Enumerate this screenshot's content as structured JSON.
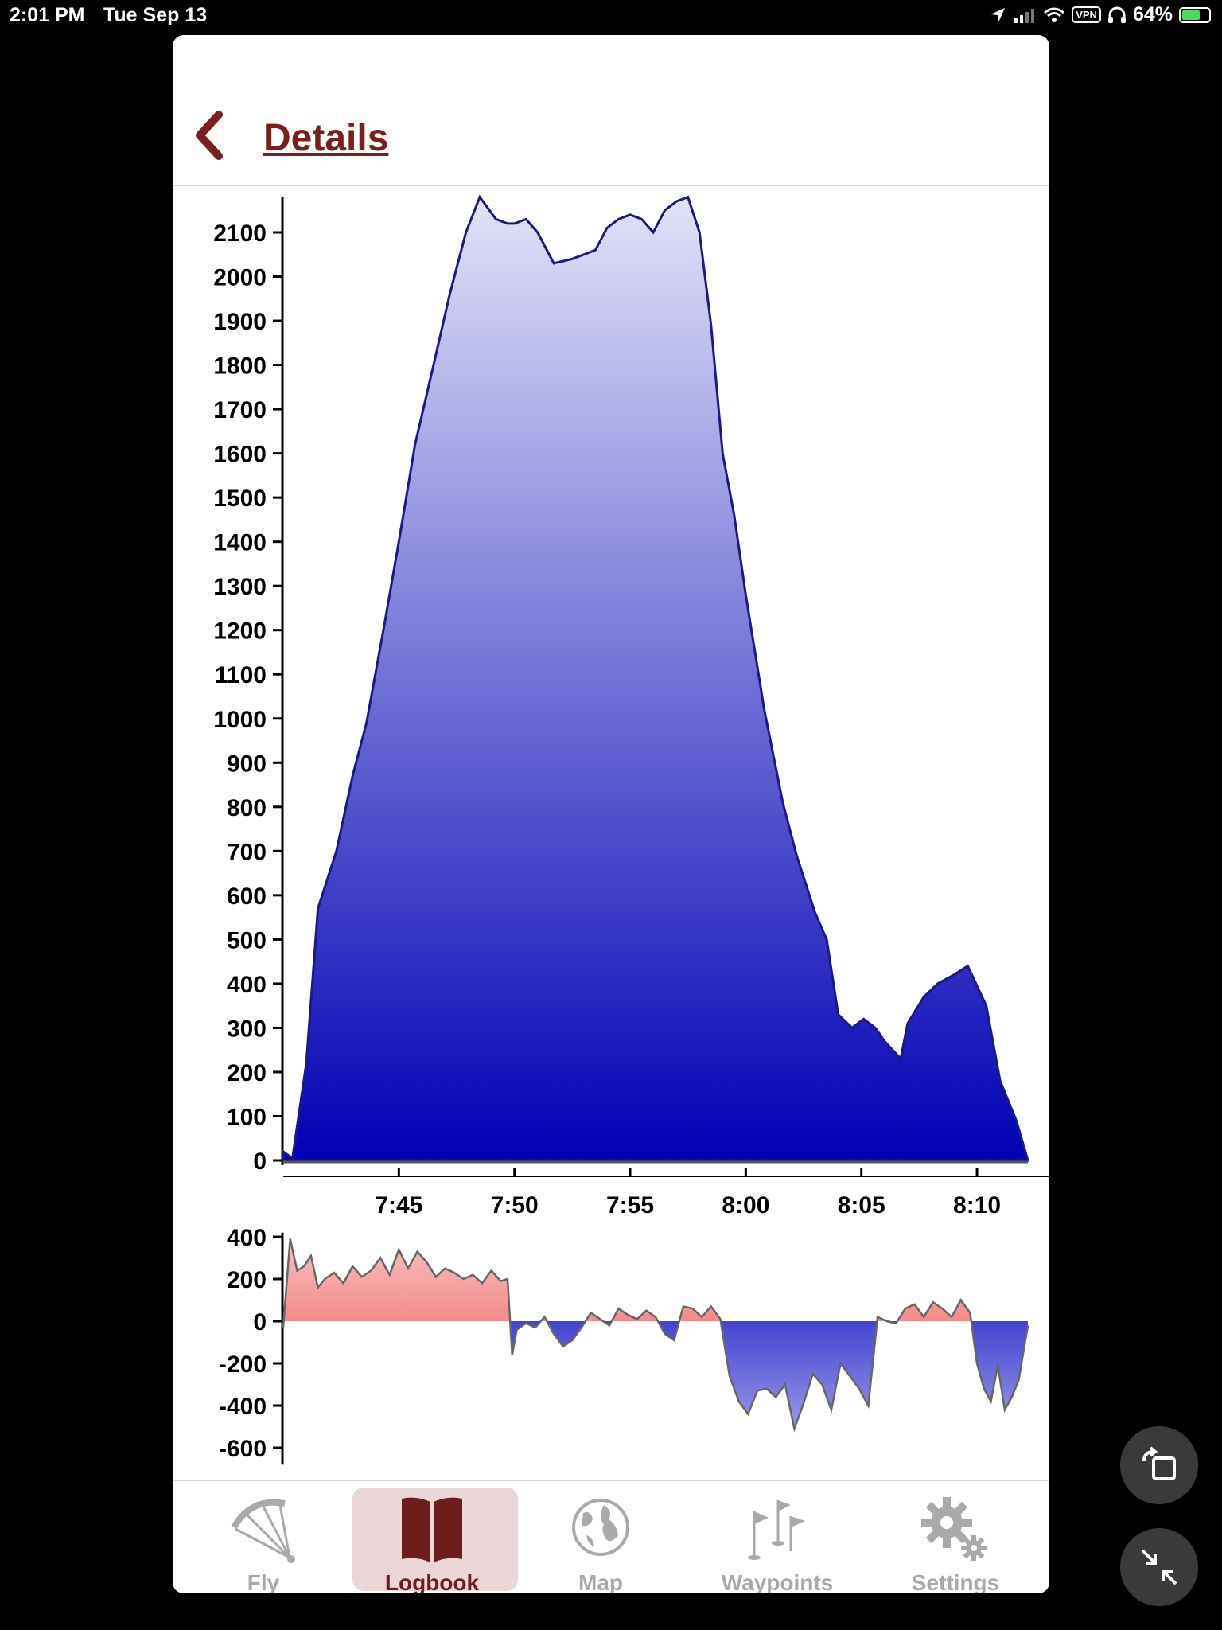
{
  "status_bar": {
    "time": "2:01 PM",
    "date": "Tue Sep 13",
    "vpn": "VPN",
    "battery": "64%"
  },
  "header": {
    "back_label": "Details"
  },
  "tabs": [
    {
      "label": "Fly",
      "icon": "paraglider-icon",
      "active": false
    },
    {
      "label": "Logbook",
      "icon": "book-icon",
      "active": true
    },
    {
      "label": "Map",
      "icon": "globe-icon",
      "active": false
    },
    {
      "label": "Waypoints",
      "icon": "flags-icon",
      "active": false
    },
    {
      "label": "Settings",
      "icon": "gear-icon",
      "active": false
    }
  ],
  "colors": {
    "accent": "#6e1d1d",
    "altitude_top": "#e2e2f8",
    "altitude_bottom": "#0000b4",
    "climb": "#ee4444",
    "sink": "#0000c0"
  },
  "chart_data": [
    {
      "type": "area",
      "title": "",
      "xlabel": "",
      "ylabel": "",
      "y_ticks": [
        "0",
        "100",
        "200",
        "300",
        "400",
        "500",
        "600",
        "700",
        "800",
        "900",
        "1000",
        "1100",
        "1200",
        "1300",
        "1400",
        "1500",
        "1600",
        "1700",
        "1800",
        "1900",
        "2000",
        "2100"
      ],
      "x_ticks": [
        "7:45",
        "7:50",
        "7:55",
        "8:00",
        "8:05",
        "8:10"
      ],
      "ylim": [
        0,
        2180
      ],
      "x_unit": "minutes after 7:00",
      "xlim": [
        40.0,
        72.2
      ],
      "x": [
        40.0,
        40.4,
        41.0,
        41.5,
        42.3,
        43.0,
        43.6,
        44.4,
        45.0,
        45.7,
        46.5,
        47.2,
        47.9,
        48.5,
        49.2,
        49.7,
        50.0,
        50.5,
        51.0,
        51.7,
        52.5,
        53.0,
        53.5,
        54.0,
        54.5,
        55.0,
        55.5,
        56.0,
        56.5,
        57.0,
        57.5,
        58.0,
        58.5,
        59.0,
        59.5,
        60.0,
        60.8,
        61.6,
        62.2,
        63.0,
        63.5,
        64.0,
        64.6,
        65.1,
        65.6,
        66.0,
        66.7,
        67.0,
        67.7,
        68.3,
        69.0,
        69.6,
        70.4,
        71.0,
        71.7,
        72.2
      ],
      "y": [
        20,
        5,
        220,
        570,
        700,
        870,
        990,
        1220,
        1400,
        1620,
        1800,
        1960,
        2100,
        2180,
        2130,
        2120,
        2120,
        2130,
        2100,
        2030,
        2040,
        2050,
        2060,
        2110,
        2130,
        2140,
        2130,
        2100,
        2150,
        2170,
        2180,
        2100,
        1890,
        1600,
        1460,
        1280,
        1020,
        810,
        690,
        560,
        500,
        330,
        300,
        320,
        300,
        270,
        230,
        310,
        370,
        400,
        420,
        440,
        350,
        180,
        90,
        0
      ]
    },
    {
      "type": "area",
      "title": "",
      "xlabel": "",
      "ylabel": "",
      "y_ticks": [
        "400",
        "200",
        "0",
        "-200",
        "-400",
        "-600"
      ],
      "ylim": [
        -680,
        420
      ],
      "x_unit": "minutes after 7:00",
      "xlim": [
        40.0,
        72.2
      ],
      "x": [
        40.0,
        40.3,
        40.6,
        40.9,
        41.2,
        41.5,
        41.8,
        42.2,
        42.6,
        43.0,
        43.4,
        43.8,
        44.2,
        44.6,
        45.0,
        45.4,
        45.8,
        46.2,
        46.6,
        47.0,
        47.4,
        47.8,
        48.2,
        48.6,
        49.0,
        49.4,
        49.7,
        49.9,
        50.1,
        50.5,
        50.9,
        51.3,
        51.7,
        52.1,
        52.5,
        52.9,
        53.3,
        53.7,
        54.1,
        54.5,
        54.9,
        55.3,
        55.7,
        56.1,
        56.5,
        56.9,
        57.3,
        57.7,
        58.1,
        58.5,
        58.9,
        59.3,
        59.7,
        60.1,
        60.5,
        60.9,
        61.3,
        61.7,
        62.1,
        62.5,
        62.9,
        63.3,
        63.7,
        64.1,
        64.5,
        64.9,
        65.3,
        65.7,
        66.1,
        66.5,
        66.9,
        67.3,
        67.7,
        68.1,
        68.5,
        68.9,
        69.3,
        69.7,
        70.0,
        70.3,
        70.6,
        70.9,
        71.2,
        71.5,
        71.8,
        72.2
      ],
      "y": [
        -30,
        390,
        240,
        260,
        310,
        160,
        200,
        230,
        180,
        260,
        210,
        240,
        300,
        220,
        340,
        250,
        330,
        280,
        210,
        250,
        230,
        200,
        220,
        180,
        240,
        190,
        200,
        -160,
        -40,
        -10,
        -30,
        20,
        -60,
        -120,
        -90,
        -30,
        40,
        10,
        -20,
        60,
        30,
        10,
        50,
        20,
        -60,
        -90,
        70,
        60,
        20,
        70,
        10,
        -260,
        -380,
        -440,
        -330,
        -320,
        -360,
        -300,
        -510,
        -390,
        -250,
        -300,
        -420,
        -200,
        -260,
        -320,
        -400,
        20,
        0,
        -10,
        60,
        80,
        20,
        90,
        60,
        20,
        100,
        40,
        -200,
        -320,
        -380,
        -210,
        -420,
        -360,
        -280,
        -20
      ]
    }
  ]
}
